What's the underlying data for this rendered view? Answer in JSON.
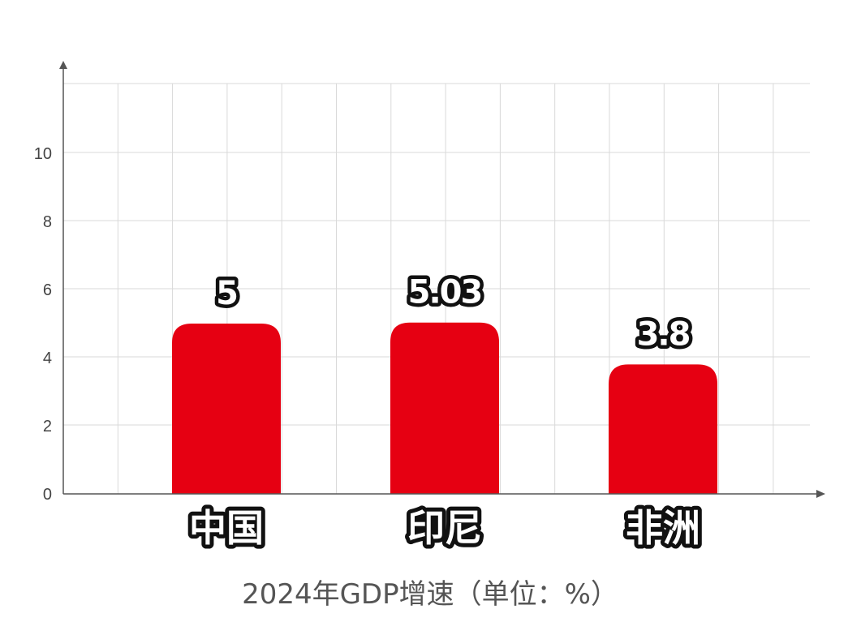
{
  "chart_data": {
    "type": "bar",
    "title": "2024年GDP增速（单位：%）",
    "xlabel": "",
    "ylabel": "",
    "categories": [
      "中国",
      "印尼",
      "非洲"
    ],
    "values": [
      5,
      5.03,
      3.8
    ],
    "value_labels": [
      "5",
      "5.03",
      "3.8"
    ],
    "ylim": [
      0,
      12
    ],
    "yticks": [
      0,
      2,
      4,
      6,
      8,
      10
    ],
    "grid": true,
    "legend": "none",
    "bar_color": "#e60012",
    "grid_color": "#d9d9d9",
    "axis_color": "#555555"
  }
}
